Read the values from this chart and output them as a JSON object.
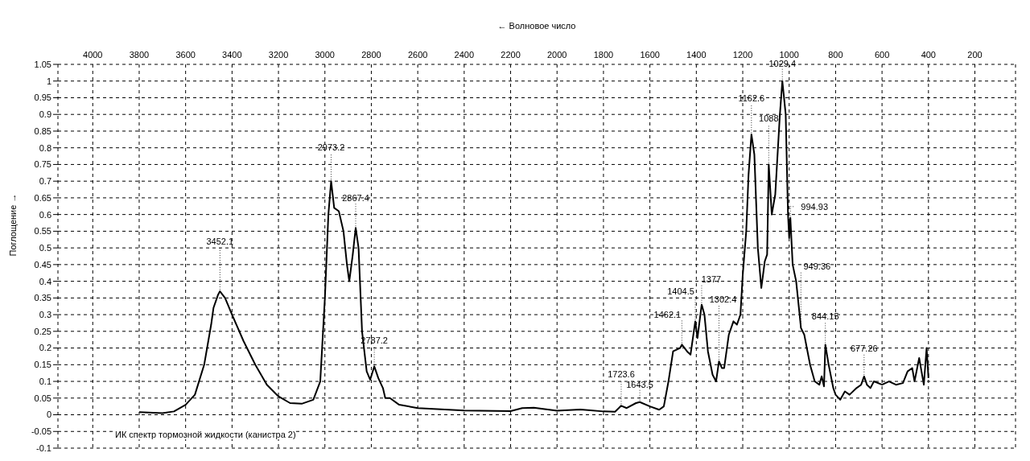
{
  "chart_data": {
    "type": "line",
    "xlabel": "← Волновое число",
    "ylabel": "Поглощение →",
    "x": [
      3800,
      3700,
      3650,
      3600,
      3560,
      3520,
      3490,
      3480,
      3460,
      3452.1,
      3430,
      3400,
      3350,
      3300,
      3250,
      3200,
      3150,
      3100,
      3050,
      3020,
      3000,
      2985,
      2973.2,
      2960,
      2940,
      2920,
      2905,
      2895,
      2880,
      2867.4,
      2855,
      2840,
      2820,
      2805,
      2787.2,
      2770,
      2750,
      2740,
      2720,
      2680,
      2600,
      2400,
      2200,
      2150,
      2100,
      2000,
      1900,
      1800,
      1750,
      1723.6,
      1700,
      1660,
      1643.5,
      1600,
      1560,
      1540,
      1520,
      1500,
      1470,
      1462.1,
      1440,
      1425,
      1404.5,
      1395,
      1377,
      1365,
      1350,
      1330,
      1315,
      1302.4,
      1290,
      1280,
      1260,
      1240,
      1225,
      1210,
      1200,
      1185,
      1175,
      1162.6,
      1150,
      1135,
      1120,
      1105,
      1095,
      1088,
      1075,
      1060,
      1050,
      1040,
      1029.4,
      1015,
      1005,
      1000,
      994.93,
      985,
      970,
      955,
      949.36,
      935,
      910,
      890,
      870,
      860,
      850,
      844.15,
      830,
      810,
      800,
      780,
      760,
      740,
      710,
      690,
      677.26,
      665,
      650,
      635,
      600,
      570,
      540,
      510,
      490,
      470,
      460,
      440,
      420,
      408,
      400
    ],
    "series": [
      {
        "color": "#000000",
        "values": [
          0.008,
          0.005,
          0.01,
          0.03,
          0.06,
          0.15,
          0.27,
          0.32,
          0.36,
          0.37,
          0.35,
          0.3,
          0.22,
          0.15,
          0.09,
          0.055,
          0.035,
          0.033,
          0.045,
          0.1,
          0.35,
          0.6,
          0.7,
          0.62,
          0.61,
          0.55,
          0.45,
          0.4,
          0.48,
          0.56,
          0.5,
          0.25,
          0.13,
          0.105,
          0.145,
          0.11,
          0.08,
          0.05,
          0.05,
          0.03,
          0.02,
          0.013,
          0.011,
          0.02,
          0.021,
          0.012,
          0.016,
          0.01,
          0.009,
          0.027,
          0.02,
          0.035,
          0.038,
          0.025,
          0.015,
          0.025,
          0.1,
          0.19,
          0.2,
          0.21,
          0.19,
          0.18,
          0.28,
          0.23,
          0.33,
          0.3,
          0.19,
          0.12,
          0.1,
          0.16,
          0.14,
          0.14,
          0.24,
          0.28,
          0.27,
          0.3,
          0.42,
          0.55,
          0.72,
          0.84,
          0.78,
          0.5,
          0.38,
          0.46,
          0.48,
          0.75,
          0.6,
          0.66,
          0.78,
          0.9,
          1.0,
          0.9,
          0.6,
          0.53,
          0.59,
          0.45,
          0.4,
          0.3,
          0.26,
          0.24,
          0.15,
          0.1,
          0.09,
          0.115,
          0.085,
          0.21,
          0.15,
          0.08,
          0.06,
          0.045,
          0.07,
          0.06,
          0.08,
          0.09,
          0.115,
          0.09,
          0.08,
          0.1,
          0.09,
          0.1,
          0.09,
          0.095,
          0.13,
          0.14,
          0.1,
          0.17,
          0.09,
          0.2,
          0.11
        ]
      }
    ],
    "xlim": [
      4150,
      25
    ],
    "xticks": [
      4000,
      3800,
      3600,
      3400,
      3200,
      3000,
      2800,
      2600,
      2400,
      2200,
      2000,
      1800,
      1600,
      1400,
      1200,
      1000,
      800,
      600,
      400,
      200
    ],
    "ylim": [
      -0.1,
      1.05
    ],
    "yticks": [
      -0.1,
      -0.05,
      0,
      0.05,
      0.1,
      0.15,
      0.2,
      0.25,
      0.3,
      0.35,
      0.4,
      0.45,
      0.5,
      0.55,
      0.6,
      0.65,
      0.7,
      0.75,
      0.8,
      0.85,
      0.9,
      0.95,
      1,
      1.05
    ],
    "grid": true,
    "line_style": "solid",
    "marker": "none",
    "annotations": [
      {
        "text": "3452.1",
        "x": 3452.1,
        "y": 0.37
      },
      {
        "text": "2973.2",
        "x": 2973.2,
        "y": 0.7
      },
      {
        "text": "2867.4",
        "x": 2867.4,
        "y": 0.56
      },
      {
        "text": "2787.2",
        "x": 2787.2,
        "y": 0.145
      },
      {
        "text": "1723.6",
        "x": 1723.6,
        "y": 0.027
      },
      {
        "text": "1643.5",
        "x": 1643.5,
        "y": 0.038
      },
      {
        "text": "1462.1",
        "x": 1462.1,
        "y": 0.21
      },
      {
        "text": "1404.5",
        "x": 1404.5,
        "y": 0.28
      },
      {
        "text": "1377",
        "x": 1377,
        "y": 0.33
      },
      {
        "text": "1302.4",
        "x": 1302.4,
        "y": 0.16
      },
      {
        "text": "1162.6",
        "x": 1162.6,
        "y": 0.84
      },
      {
        "text": "1088",
        "x": 1088,
        "y": 0.75
      },
      {
        "text": "1029.4",
        "x": 1029.4,
        "y": 1.0
      },
      {
        "text": "994.93",
        "x": 994.93,
        "y": 0.59
      },
      {
        "text": "949.36",
        "x": 949.36,
        "y": 0.26
      },
      {
        "text": "844.15",
        "x": 844.15,
        "y": 0.21
      },
      {
        "text": "677.26",
        "x": 677.26,
        "y": 0.115
      },
      "ИК спектр тормозной жидкости (канистра 2)"
    ]
  }
}
